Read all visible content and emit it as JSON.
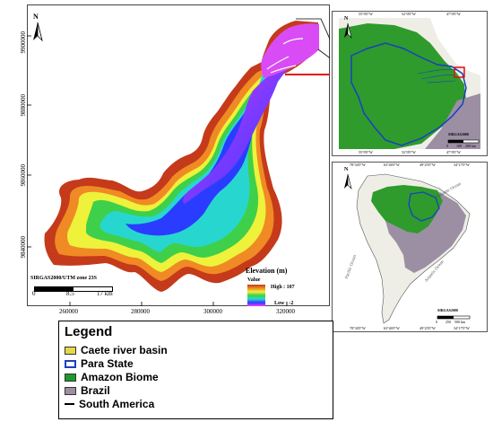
{
  "main_map": {
    "north_label": "N",
    "y_ticks": [
      "9900000",
      "9880000",
      "9860000",
      "9840000"
    ],
    "x_ticks": [
      "260000",
      "280000",
      "300000",
      "320000"
    ],
    "crs_label": "SIRGAS2000/UTM zone 23S",
    "scale_labels": [
      "0",
      "8.5",
      "17 km"
    ],
    "elevation": {
      "title": "Elevation (m)",
      "value_label": "Value",
      "high_label": "High : 107",
      "low_label": "Low : -2",
      "high_value": 107,
      "low_value": -2,
      "unit": "m"
    }
  },
  "inset_top": {
    "north_label": "N",
    "top_ticks": [
      "55°0'0\"W",
      "52°0'0\"W",
      "47°0'0\"W"
    ],
    "bottom_ticks": [
      "55°0'0\"W",
      "52°0'0\"W",
      "47°0'0\"W"
    ],
    "crs_label": "SIRGAS2000",
    "scale_labels": [
      "0",
      "100",
      "200 km"
    ]
  },
  "inset_bottom": {
    "north_label": "N",
    "top_ticks": [
      "78°34'0\"W",
      "63°46'0\"W",
      "49°25'0\"W",
      "34°17'0\"W"
    ],
    "bottom_ticks": [
      "78°34'0\"W",
      "63°46'0\"W",
      "49°25'0\"W",
      "34°17'0\"W"
    ],
    "ocean_labels": [
      "Atlantic Ocean",
      "Pacific Ocean",
      "Atlantic Ocean"
    ],
    "crs_label": "SIRGAS2000",
    "scale_labels": [
      "0",
      "250",
      "500 km"
    ]
  },
  "legend": {
    "title": "Legend",
    "items": [
      {
        "label": "Caete river basin",
        "color": "#e6d84a",
        "kind": "fill"
      },
      {
        "label": "Para State",
        "color": "#1f3fbf",
        "kind": "outline"
      },
      {
        "label": "Amazon Biome",
        "color": "#1c9a2a",
        "kind": "fill"
      },
      {
        "label": "Brazil",
        "color": "#9e8fa0",
        "kind": "fill"
      },
      {
        "label": "South America",
        "color": "#000000",
        "kind": "line"
      }
    ]
  },
  "colors": {
    "amazon_green": "#2e9b2c",
    "brazil_grey": "#9c8fa3",
    "para_outline": "#1b3fc4",
    "highlight_red": "#e01010",
    "land_light": "#eeeee6"
  }
}
